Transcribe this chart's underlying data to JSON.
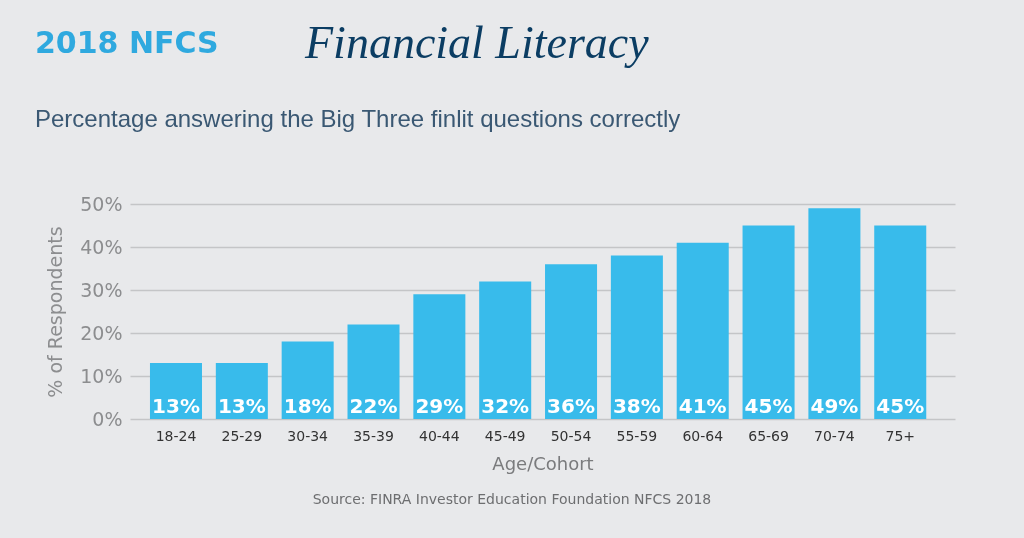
{
  "chart_data": {
    "type": "bar",
    "title": "Financial Literacy",
    "subtitle": "Percentage answering the Big Three finlit questions correctly",
    "xlabel": "Age/Cohort",
    "ylabel": "% of Respondents",
    "categories": [
      "18-24",
      "25-29",
      "30-34",
      "35-39",
      "40-44",
      "45-49",
      "50-54",
      "55-59",
      "60-64",
      "65-69",
      "70-74",
      "75+"
    ],
    "values": [
      13,
      13,
      18,
      22,
      29,
      32,
      36,
      38,
      41,
      45,
      49,
      45
    ],
    "color": "#38bbeb",
    "value_labels": [
      "13%",
      "13%",
      "18%",
      "22%",
      "29%",
      "32%",
      "36%",
      "38%",
      "41%",
      "45%",
      "49%",
      "45%"
    ],
    "ylim": [
      0,
      50
    ],
    "yticks": [
      {
        "value": 0,
        "label": "0%"
      },
      {
        "value": 10,
        "label": "10%"
      },
      {
        "value": 20,
        "label": "20%"
      },
      {
        "value": 30,
        "label": "30%"
      },
      {
        "value": 40,
        "label": "40%"
      },
      {
        "value": 50,
        "label": "50%"
      }
    ],
    "grid": "y",
    "annotations": [
      "2018 NFCS",
      "Source: FINRA Investor Education Foundation NFCS 2018"
    ]
  }
}
